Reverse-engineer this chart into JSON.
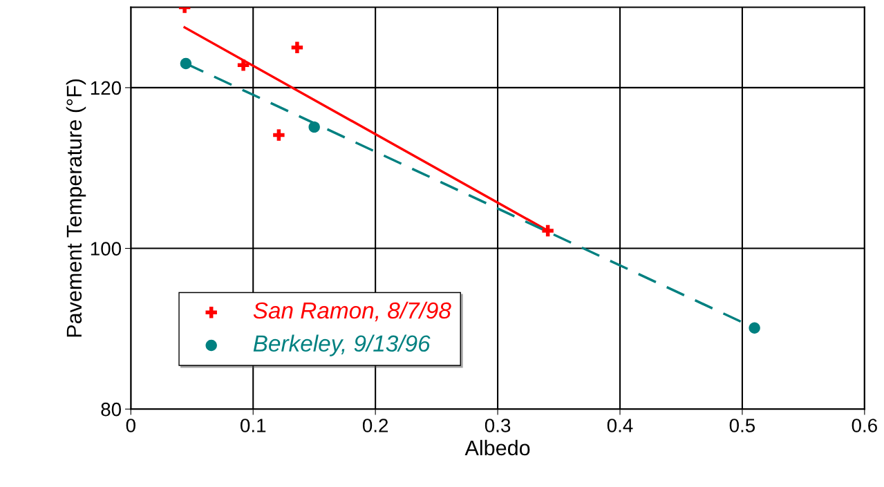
{
  "chart_data": {
    "type": "scatter",
    "xlabel": "Albedo",
    "ylabel": "Pavement Temperature (°F)",
    "xlim": [
      0,
      0.6
    ],
    "xticks": [
      0,
      0.1,
      0.2,
      0.3,
      0.4,
      0.5,
      0.6
    ],
    "ylim": [
      80,
      130
    ],
    "yticks": [
      80,
      100,
      120
    ],
    "grid": true,
    "legend": "bottom left",
    "series": [
      {
        "name": "San Ramon, 8/7/98",
        "color": "#ff0000",
        "marker": "cross",
        "x": [
          0.044,
          0.092,
          0.121,
          0.136,
          0.341
        ],
        "values": [
          130,
          122.8,
          114.1,
          125,
          102.2
        ]
      },
      {
        "name": "Berkeley, 9/13/96",
        "color": "#008080",
        "marker": "circle",
        "x": [
          0.045,
          0.15,
          0.51
        ],
        "values": [
          123,
          115.1,
          90.1
        ]
      },
      {
        "type": "line",
        "color": "#ff0000",
        "line_style": "solid",
        "x": [
          0.044,
          0.341
        ],
        "values": [
          127.5,
          102.2
        ]
      },
      {
        "type": "line",
        "color": "#008080",
        "line_style": "dashed",
        "x": [
          0.045,
          0.51
        ],
        "values": [
          123,
          90.1
        ]
      }
    ]
  }
}
